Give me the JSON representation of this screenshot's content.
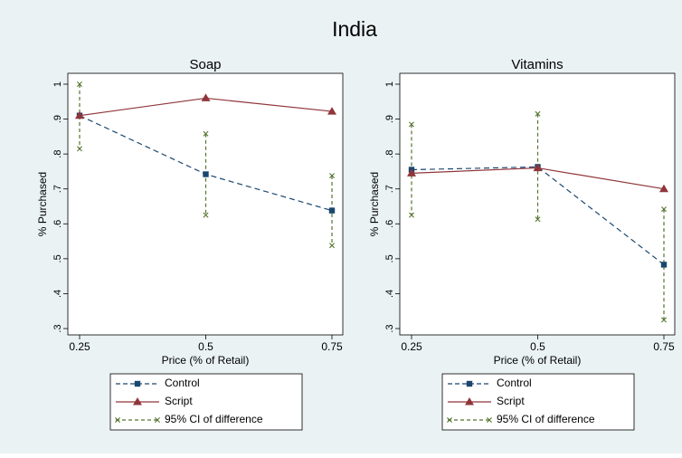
{
  "figure_title": "India",
  "colors": {
    "background": "#eaf2f3",
    "plot_area": "#ffffff",
    "control": "#1a476f",
    "script": "#90353b",
    "ci": "#55752f"
  },
  "chart_data": [
    {
      "type": "line",
      "title": "Soap",
      "xlabel": "Price (% of Retail)",
      "ylabel": "% Purchased",
      "x": [
        0.25,
        0.5,
        0.75
      ],
      "x_tick_labels": [
        "0.25",
        "0.5",
        "0.75"
      ],
      "ylim": [
        0.3,
        1.0
      ],
      "y_ticks": [
        0.3,
        0.4,
        0.5,
        0.6,
        0.7,
        0.8,
        0.9,
        1.0
      ],
      "y_tick_labels": [
        ".3",
        ".4",
        ".5",
        ".6",
        ".7",
        ".8",
        ".9",
        "1"
      ],
      "grid": false,
      "legend_position": "below",
      "series": [
        {
          "name": "Control",
          "marker": "square",
          "line_style": "dashed",
          "values": [
            0.91,
            0.742,
            0.638
          ]
        },
        {
          "name": "Script",
          "marker": "triangle",
          "line_style": "solid",
          "values": [
            0.91,
            0.96,
            0.922
          ]
        }
      ],
      "intervals": {
        "name": "95% CI of difference",
        "lower": [
          0.815,
          0.625,
          0.538
        ],
        "upper": [
          1.0,
          0.858,
          0.738
        ]
      }
    },
    {
      "type": "line",
      "title": "Vitamins",
      "xlabel": "Price (% of Retail)",
      "ylabel": "% Purchased",
      "x": [
        0.25,
        0.5,
        0.75
      ],
      "x_tick_labels": [
        "0.25",
        "0.5",
        "0.75"
      ],
      "ylim": [
        0.3,
        1.0
      ],
      "y_ticks": [
        0.3,
        0.4,
        0.5,
        0.6,
        0.7,
        0.8,
        0.9,
        1.0
      ],
      "y_tick_labels": [
        ".3",
        ".4",
        ".5",
        ".6",
        ".7",
        ".8",
        ".9",
        "1"
      ],
      "grid": false,
      "legend_position": "below",
      "series": [
        {
          "name": "Control",
          "marker": "square",
          "line_style": "dashed",
          "values": [
            0.755,
            0.763,
            0.483
          ]
        },
        {
          "name": "Script",
          "marker": "triangle",
          "line_style": "solid",
          "values": [
            0.745,
            0.76,
            0.7
          ]
        }
      ],
      "intervals": {
        "name": "95% CI of difference",
        "lower": [
          0.625,
          0.613,
          0.325
        ],
        "upper": [
          0.885,
          0.915,
          0.642
        ]
      }
    }
  ]
}
